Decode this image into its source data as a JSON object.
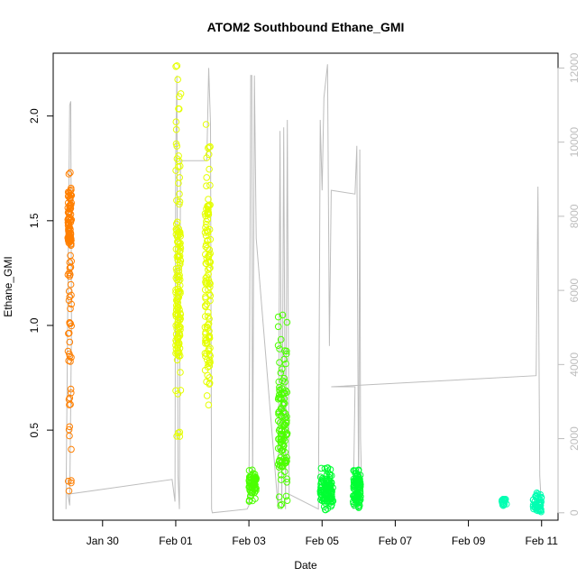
{
  "chart_data": {
    "type": "scatter",
    "title": "ATOM2 Southbound Ethane_GMI",
    "xlabel": "Date",
    "ylabel": "Ethane_GMI",
    "x_ticks": [
      {
        "value": 1.0,
        "label": "Jan 30"
      },
      {
        "value": 3.0,
        "label": "Feb 01"
      },
      {
        "value": 5.0,
        "label": "Feb 03"
      },
      {
        "value": 7.0,
        "label": "Feb 05"
      },
      {
        "value": 9.0,
        "label": "Feb 07"
      },
      {
        "value": 11.0,
        "label": "Feb 09"
      },
      {
        "value": 13.0,
        "label": "Feb 11"
      }
    ],
    "xlim": [
      -0.35,
      13.45
    ],
    "ylim": [
      0.07,
      2.3
    ],
    "y_ticks": [
      0.5,
      1.0,
      1.5,
      2.0
    ],
    "y2lim": [
      -200,
      12400
    ],
    "y2_ticks": [
      0,
      2000,
      4000,
      6000,
      8000,
      10000,
      12000
    ],
    "grid": false,
    "colors": {
      "orange": "#ff7f00",
      "yellow": "#e5ff00",
      "green": "#4cff00",
      "bright_green": "#00ff33",
      "cyan": "#00ffb2",
      "altitude": "#bdbdbd"
    },
    "point_groups": [
      {
        "color": "#ff7f00",
        "x_start": 0.05,
        "x_end": 0.15,
        "y_min": 0.21,
        "y_max": 1.73,
        "dense_min": 1.38,
        "dense_max": 1.66,
        "n": 130
      },
      {
        "color": "#e5ff00",
        "x_start": 3.0,
        "x_end": 3.14,
        "y_min": 0.47,
        "y_max": 2.24,
        "dense_min": 0.85,
        "dense_max": 1.5,
        "n": 150
      },
      {
        "color": "#e5ff00",
        "x_start": 3.8,
        "x_end": 3.95,
        "y_min": 0.62,
        "y_max": 1.96,
        "dense_min": 0.8,
        "dense_max": 1.6,
        "n": 130
      },
      {
        "color": "#4cff00",
        "x_start": 5.0,
        "x_end": 5.2,
        "y_min": 0.16,
        "y_max": 0.31,
        "dense_min": 0.2,
        "dense_max": 0.28,
        "n": 70
      },
      {
        "color": "#4cff00",
        "x_start": 5.8,
        "x_end": 6.05,
        "y_min": 0.14,
        "y_max": 1.05,
        "dense_min": 0.3,
        "dense_max": 0.7,
        "n": 120
      },
      {
        "color": "#00ff33",
        "x_start": 6.95,
        "x_end": 7.3,
        "y_min": 0.12,
        "y_max": 0.32,
        "dense_min": 0.16,
        "dense_max": 0.27,
        "n": 110
      },
      {
        "color": "#00ff33",
        "x_start": 7.85,
        "x_end": 8.05,
        "y_min": 0.13,
        "y_max": 0.31,
        "dense_min": 0.16,
        "dense_max": 0.27,
        "n": 90
      },
      {
        "color": "#00ffb2",
        "x_start": 11.9,
        "x_end": 12.05,
        "y_min": 0.14,
        "y_max": 0.17,
        "dense_min": 0.14,
        "dense_max": 0.17,
        "n": 18
      },
      {
        "color": "#00ffb2",
        "x_start": 12.75,
        "x_end": 13.0,
        "y_min": 0.11,
        "y_max": 0.2,
        "dense_min": 0.12,
        "dense_max": 0.18,
        "n": 45
      }
    ],
    "altitude_path": [
      [
        0.0,
        100
      ],
      [
        0.05,
        5600
      ],
      [
        0.1,
        11000
      ],
      [
        0.13,
        11100
      ],
      [
        0.15,
        5000
      ],
      [
        0.1,
        200
      ],
      [
        0.05,
        500
      ],
      [
        2.9,
        900
      ],
      [
        2.98,
        300
      ],
      [
        3.0,
        9500
      ],
      [
        3.03,
        11800
      ],
      [
        3.06,
        1000
      ],
      [
        3.1,
        100
      ],
      [
        3.13,
        9500
      ],
      [
        3.85,
        9500
      ],
      [
        3.9,
        12000
      ],
      [
        3.95,
        10500
      ],
      [
        3.98,
        100
      ],
      [
        4.0,
        0
      ],
      [
        4.95,
        100
      ],
      [
        5.0,
        200
      ],
      [
        5.05,
        11800
      ],
      [
        5.08,
        11800
      ],
      [
        5.1,
        500
      ],
      [
        5.15,
        11800
      ],
      [
        5.2,
        7400
      ],
      [
        5.8,
        100
      ],
      [
        5.85,
        10300
      ],
      [
        5.9,
        100
      ],
      [
        5.95,
        10400
      ],
      [
        6.0,
        100
      ],
      [
        6.05,
        10600
      ],
      [
        6.1,
        500
      ],
      [
        6.9,
        100
      ],
      [
        6.95,
        10600
      ],
      [
        7.0,
        8700
      ],
      [
        7.05,
        11200
      ],
      [
        7.15,
        12100
      ],
      [
        7.2,
        4500
      ],
      [
        7.25,
        8700
      ],
      [
        7.9,
        8600
      ],
      [
        7.95,
        9900
      ],
      [
        8.0,
        100
      ],
      [
        8.03,
        9800
      ],
      [
        8.05,
        2000
      ],
      [
        8.08,
        800
      ],
      [
        7.85,
        100
      ],
      [
        7.9,
        3400
      ],
      [
        7.25,
        3400
      ],
      [
        12.85,
        3700
      ],
      [
        12.9,
        8800
      ],
      [
        12.95,
        1000
      ],
      [
        13.0,
        100
      ]
    ]
  }
}
